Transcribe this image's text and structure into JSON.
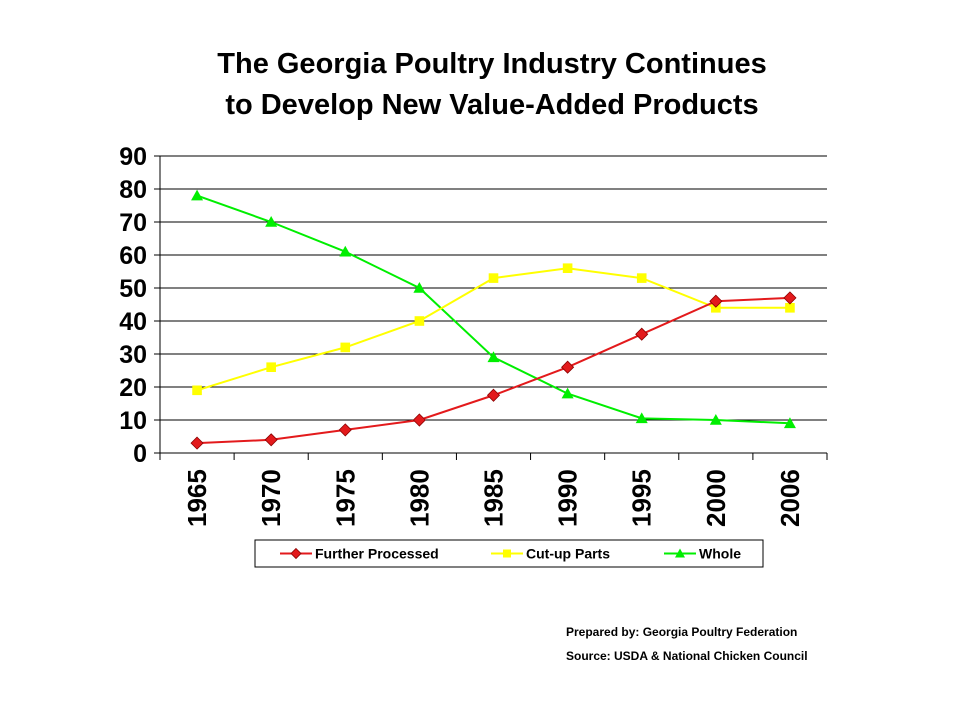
{
  "title": {
    "line1": "The Georgia Poultry Industry Continues",
    "line2": "to Develop New Value-Added Products"
  },
  "footer": {
    "prepared_by": "Prepared by:  Georgia Poultry Federation",
    "source": "Source:  USDA & National Chicken Council"
  },
  "chart_data": {
    "type": "line",
    "categories": [
      "1965",
      "1970",
      "1975",
      "1980",
      "1985",
      "1990",
      "1995",
      "2000",
      "2006"
    ],
    "ylim": [
      0,
      90
    ],
    "yticks": [
      0,
      10,
      20,
      30,
      40,
      50,
      60,
      70,
      80,
      90
    ],
    "grid": true,
    "legend_position": "bottom",
    "series": [
      {
        "name": "Further Processed",
        "color": "#e31a1c",
        "marker": "diamond",
        "values": [
          3,
          4,
          7,
          10,
          17.5,
          26,
          36,
          46,
          47
        ]
      },
      {
        "name": "Cut-up Parts",
        "color": "#ffff00",
        "marker": "square",
        "values": [
          19,
          26,
          32,
          40,
          53,
          56,
          53,
          44,
          44
        ]
      },
      {
        "name": "Whole",
        "color": "#00ee00",
        "marker": "triangle",
        "values": [
          78,
          70,
          61,
          50,
          29,
          18,
          10.5,
          10,
          9
        ]
      }
    ]
  }
}
